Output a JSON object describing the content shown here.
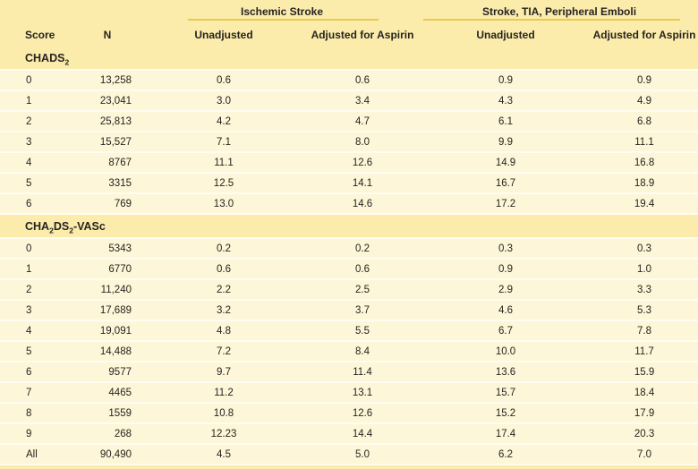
{
  "colors": {
    "header_band": "#fbecab",
    "data_row": "#fdf6d8",
    "row_separator": "#fffdf0",
    "gold_rule": "#ebc94f",
    "text": "#272320"
  },
  "table": {
    "column_groups": [
      {
        "label": "Ischemic Stroke"
      },
      {
        "label": "Stroke, TIA, Peripheral Emboli"
      }
    ],
    "columns": {
      "score": "Score",
      "n": "N",
      "unadjusted_1": "Unadjusted",
      "adjusted_1": "Adjusted for Aspirin",
      "unadjusted_2": "Unadjusted",
      "adjusted_2": "Adjusted for Aspirin"
    },
    "sections": [
      {
        "label_parts": [
          {
            "text": "CHADS"
          },
          {
            "text": "2",
            "subscript": true
          }
        ],
        "rows": [
          {
            "score": "0",
            "n": "13,258",
            "values": [
              "0.6",
              "0.6",
              "0.9",
              "0.9"
            ]
          },
          {
            "score": "1",
            "n": "23,041",
            "values": [
              "3.0",
              "3.4",
              "4.3",
              "4.9"
            ]
          },
          {
            "score": "2",
            "n": "25,813",
            "values": [
              "4.2",
              "4.7",
              "6.1",
              "6.8"
            ]
          },
          {
            "score": "3",
            "n": "15,527",
            "values": [
              "7.1",
              "8.0",
              "9.9",
              "11.1"
            ]
          },
          {
            "score": "4",
            "n": "8767",
            "values": [
              "11.1",
              "12.6",
              "14.9",
              "16.8"
            ]
          },
          {
            "score": "5",
            "n": "3315",
            "values": [
              "12.5",
              "14.1",
              "16.7",
              "18.9"
            ]
          },
          {
            "score": "6",
            "n": "769",
            "values": [
              "13.0",
              "14.6",
              "17.2",
              "19.4"
            ]
          }
        ]
      },
      {
        "label_parts": [
          {
            "text": "CHA"
          },
          {
            "text": "2",
            "subscript": true
          },
          {
            "text": "DS"
          },
          {
            "text": "2",
            "subscript": true
          },
          {
            "text": "-VASc"
          }
        ],
        "rows": [
          {
            "score": "0",
            "n": "5343",
            "values": [
              "0.2",
              "0.2",
              "0.3",
              "0.3"
            ]
          },
          {
            "score": "1",
            "n": "6770",
            "values": [
              "0.6",
              "0.6",
              "0.9",
              "1.0"
            ]
          },
          {
            "score": "2",
            "n": "11,240",
            "values": [
              "2.2",
              "2.5",
              "2.9",
              "3.3"
            ]
          },
          {
            "score": "3",
            "n": "17,689",
            "values": [
              "3.2",
              "3.7",
              "4.6",
              "5.3"
            ]
          },
          {
            "score": "4",
            "n": "19,091",
            "values": [
              "4.8",
              "5.5",
              "6.7",
              "7.8"
            ]
          },
          {
            "score": "5",
            "n": "14,488",
            "values": [
              "7.2",
              "8.4",
              "10.0",
              "11.7"
            ]
          },
          {
            "score": "6",
            "n": "9577",
            "values": [
              "9.7",
              "11.4",
              "13.6",
              "15.9"
            ]
          },
          {
            "score": "7",
            "n": "4465",
            "values": [
              "11.2",
              "13.1",
              "15.7",
              "18.4"
            ]
          },
          {
            "score": "8",
            "n": "1559",
            "values": [
              "10.8",
              "12.6",
              "15.2",
              "17.9"
            ]
          },
          {
            "score": "9",
            "n": "268",
            "values": [
              "12.23",
              "14.4",
              "17.4",
              "20.3"
            ]
          },
          {
            "score": "All",
            "n": "90,490",
            "values": [
              "4.5",
              "5.0",
              "6.2",
              "7.0"
            ]
          }
        ]
      }
    ]
  }
}
